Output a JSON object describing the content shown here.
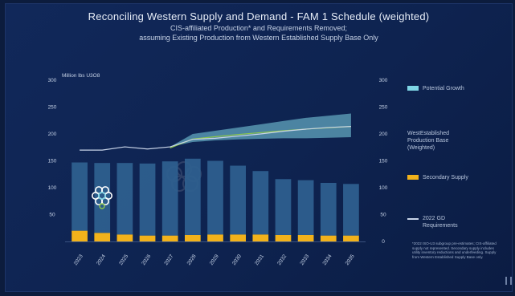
{
  "slide": {
    "title": "Reconciling Western Supply and Demand - FAM 1 Schedule (weighted)",
    "subtitle_line1": "CIS-affiliated Production* and Requirements Removed;",
    "subtitle_line2": "assuming Existing Production from Western Established Supply Base Only",
    "footnote": "*2022 ISO-U3 subgroup pre-estimates; CIS-affiliated supply not represented. Secondary supply includes utility inventory reductions and underfeeding. Supply from Western Established Supply Base only.",
    "colors": {
      "background": "#0e2350",
      "bars": "#2e5f8e",
      "secondary": "#f2b21b",
      "potential": "#7fd6e6",
      "base_line": "#8fc84a",
      "requirements": "#c8d4e8"
    },
    "icons": [
      "cluster-logo-icon",
      "watermark-logo-icon",
      "corner-icon"
    ]
  },
  "legend": {
    "potential_growth": "Potential Growth",
    "established_base": "WestEstablished\nProduction Base\n(Weighted)",
    "secondary_supply": "Secondary Supply",
    "requirements": "2022 GD\nRequirements"
  },
  "chart_data": {
    "type": "bar",
    "title": "Reconciling Western Supply and Demand - FAM 1 Schedule (weighted)",
    "ylabel": "Million lbs U3O8",
    "ylim": [
      0,
      300
    ],
    "yticks": [
      0,
      50,
      100,
      150,
      200,
      250,
      300
    ],
    "ytick_labels_left": [
      "",
      "50",
      "100",
      "150",
      "200",
      "250",
      "300"
    ],
    "ytick_labels_right": [
      "0",
      "50",
      "100",
      "150",
      "200",
      "250",
      "300"
    ],
    "categories": [
      "2023",
      "2024",
      "2025",
      "2026",
      "2027",
      "2028",
      "2029",
      "2030",
      "2031",
      "2032",
      "2033",
      "2034",
      "2035"
    ],
    "series": [
      {
        "name": "WestEstablished Production Base (Weighted)",
        "kind": "stacked-bar",
        "values": [
          127,
          130,
          133,
          134,
          138,
          142,
          137,
          128,
          118,
          104,
          102,
          98,
          96
        ]
      },
      {
        "name": "Secondary Supply",
        "kind": "stacked-bar",
        "values": [
          20,
          16,
          13,
          11,
          11,
          12,
          13,
          13,
          13,
          12,
          12,
          11,
          11
        ]
      },
      {
        "name": "2022 GD Requirements",
        "kind": "line",
        "values": [
          170,
          170,
          176,
          172,
          176,
          190,
          192,
          196,
          200,
          205,
          209,
          212,
          214
        ]
      },
      {
        "name": "Potential Growth",
        "kind": "band",
        "lower": [
          null,
          null,
          null,
          null,
          176,
          185,
          188,
          190,
          191,
          192,
          192,
          193,
          194
        ],
        "upper": [
          null,
          null,
          null,
          null,
          176,
          200,
          206,
          212,
          218,
          224,
          230,
          234,
          238
        ]
      }
    ],
    "grid": false,
    "legend_position": "right"
  }
}
